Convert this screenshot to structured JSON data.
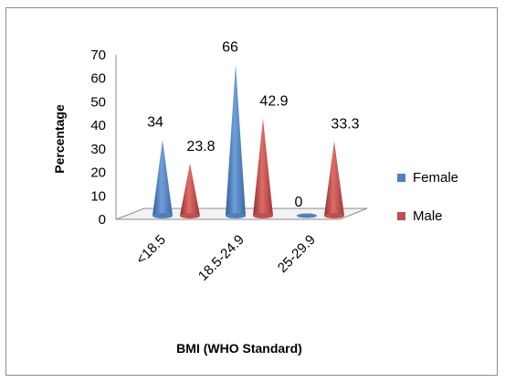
{
  "chart_data": {
    "type": "bar",
    "style": "3d-cone",
    "categories": [
      "<18.5",
      "18.5-24.9",
      "25-29.9"
    ],
    "series": [
      {
        "name": "Female",
        "values": [
          34,
          66,
          0
        ],
        "labels": [
          "34",
          "66",
          "0"
        ],
        "color": "#4F81BD"
      },
      {
        "name": "Male",
        "values": [
          23.8,
          42.9,
          33.3
        ],
        "labels": [
          "23.8",
          "42.9",
          "33.3"
        ],
        "color": "#C0504D"
      }
    ],
    "title": "",
    "xlabel": "BMI (WHO Standard)",
    "ylabel": "Percentage",
    "ylim": [
      0,
      70
    ],
    "yticks": [
      "0",
      "10",
      "20",
      "30",
      "40",
      "50",
      "60",
      "70"
    ],
    "grid": false,
    "legend": "right"
  }
}
